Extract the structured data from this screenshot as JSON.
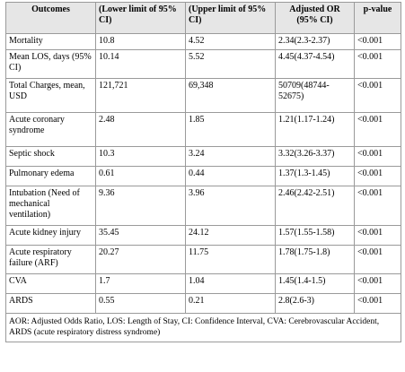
{
  "table": {
    "headers": [
      "Outcomes",
      "(Lower limit of 95% CI)",
      "(Upper limit of 95% CI)",
      "Adjusted OR (95% CI)",
      "p-value"
    ],
    "rows": [
      {
        "outcome": "Mortality",
        "lower": "10.8",
        "upper": "4.52",
        "aor": "2.34(2.3-2.37)",
        "p": "<0.001",
        "h": 18
      },
      {
        "outcome": "Mean LOS, days (95% CI)",
        "lower": "10.14",
        "upper": "5.52",
        "aor": "4.45(4.37-4.54)",
        "p": "<0.001",
        "h": 32
      },
      {
        "outcome": "Total Charges, mean, USD",
        "lower": "121,721",
        "upper": "69,348",
        "aor": "50709(48744-52675)",
        "p": "<0.001",
        "h": 38
      },
      {
        "outcome": "Acute coronary syndrome",
        "lower": "2.48",
        "upper": "1.85",
        "aor": "1.21(1.17-1.24)",
        "p": "<0.001",
        "h": 38
      },
      {
        "outcome": "Septic shock",
        "lower": "10.3",
        "upper": "3.24",
        "aor": "3.32(3.26-3.37)",
        "p": "<0.001",
        "h": 22
      },
      {
        "outcome": "Pulmonary edema",
        "lower": "0.61",
        "upper": "0.44",
        "aor": "1.37(1.3-1.45)",
        "p": "<0.001",
        "h": 22
      },
      {
        "outcome": "Intubation (Need of mechanical ventilation)",
        "lower": "9.36",
        "upper": "3.96",
        "aor": "2.46(2.42-2.51)",
        "p": "<0.001",
        "h": 44
      },
      {
        "outcome": "Acute kidney injury",
        "lower": "35.45",
        "upper": "24.12",
        "aor": "1.57(1.55-1.58)",
        "p": "<0.001",
        "h": 22
      },
      {
        "outcome": "Acute respiratory failure (ARF)",
        "lower": "20.27",
        "upper": "11.75",
        "aor": "1.78(1.75-1.8)",
        "p": "<0.001",
        "h": 32
      },
      {
        "outcome": "CVA",
        "lower": "1.7",
        "upper": "1.04",
        "aor": "1.45(1.4-1.5)",
        "p": "<0.001",
        "h": 22
      },
      {
        "outcome": "ARDS",
        "lower": "0.55",
        "upper": "0.21",
        "aor": "2.8(2.6-3)",
        "p": "<0.001",
        "h": 22
      }
    ],
    "footnote": "AOR: Adjusted Odds Ratio, LOS: Length of Stay, CI: Confidence Interval, CVA: Cerebrovascular Accident, ARDS (acute respiratory distress syndrome)"
  }
}
